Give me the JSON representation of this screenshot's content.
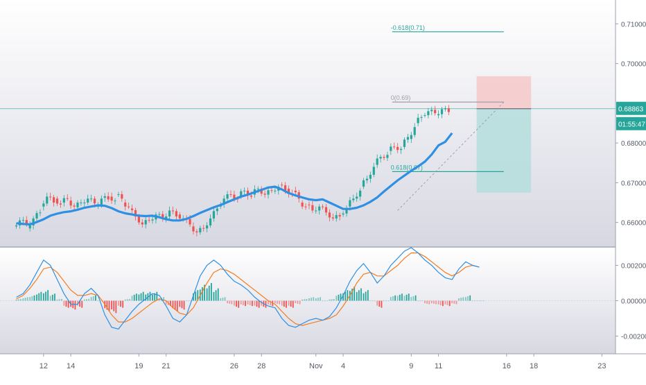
{
  "chart_data": [
    {
      "type": "candlestick",
      "panel": "price",
      "title": "",
      "ylim": [
        0.654,
        0.716
      ],
      "y_ticks": [
        "0.71000",
        "0.70000",
        "0.68000",
        "0.67000",
        "0.66000"
      ],
      "last_price_label": "0.68863",
      "last_price_value": 0.68863,
      "countdown_label": "01:55:47",
      "moving_average": {
        "color": "#2e8fe3",
        "values": [
          0.6598,
          0.6596,
          0.6595,
          0.6601,
          0.6608,
          0.6617,
          0.6622,
          0.6626,
          0.6628,
          0.6632,
          0.6637,
          0.664,
          0.6643,
          0.6642,
          0.6636,
          0.6628,
          0.6623,
          0.662,
          0.6617,
          0.6616,
          0.6617,
          0.6613,
          0.6608,
          0.6605,
          0.6605,
          0.6609,
          0.6616,
          0.6624,
          0.6631,
          0.6638,
          0.6644,
          0.6651,
          0.6658,
          0.6665,
          0.667,
          0.6676,
          0.6682,
          0.6688,
          0.669,
          0.6683,
          0.6674,
          0.6668,
          0.6663,
          0.6658,
          0.6656,
          0.6658,
          0.665,
          0.6642,
          0.6634,
          0.6634,
          0.6637,
          0.6643,
          0.6652,
          0.6663,
          0.6678,
          0.6692,
          0.6706,
          0.6718,
          0.673,
          0.6741,
          0.6753,
          0.6771,
          0.6794,
          0.6803,
          0.6825
        ],
        "x_start": 0,
        "x_step": 0.25
      },
      "candles": [
        [
          0,
          0.659,
          0.6605
        ],
        [
          0.25,
          0.6605,
          0.6595
        ],
        [
          0.5,
          0.6585,
          0.661
        ],
        [
          0.75,
          0.661,
          0.6625
        ],
        [
          1,
          0.664,
          0.6665
        ],
        [
          1.25,
          0.6665,
          0.665
        ],
        [
          1.5,
          0.666,
          0.6645
        ],
        [
          1.75,
          0.665,
          0.666
        ],
        [
          2,
          0.6655,
          0.664
        ],
        [
          2.25,
          0.6638,
          0.665
        ],
        [
          2.5,
          0.665,
          0.666
        ],
        [
          2.75,
          0.666,
          0.6648
        ],
        [
          3,
          0.664,
          0.666
        ],
        [
          3.25,
          0.6662,
          0.6658
        ],
        [
          3.5,
          0.6665,
          0.6655
        ],
        [
          3.75,
          0.667,
          0.666
        ],
        [
          4,
          0.665,
          0.664
        ],
        [
          4.25,
          0.6635,
          0.6615
        ],
        [
          4.5,
          0.6615,
          0.6595
        ],
        [
          4.75,
          0.6595,
          0.6605
        ],
        [
          5,
          0.6605,
          0.662
        ],
        [
          5.25,
          0.662,
          0.661
        ],
        [
          5.5,
          0.661,
          0.663
        ],
        [
          5.75,
          0.663,
          0.6615
        ],
        [
          6,
          0.662,
          0.661
        ],
        [
          6.25,
          0.661,
          0.6595
        ],
        [
          6.5,
          0.659,
          0.6575
        ],
        [
          6.75,
          0.6575,
          0.6585
        ],
        [
          7,
          0.6585,
          0.661
        ],
        [
          7.25,
          0.661,
          0.6635
        ],
        [
          7.5,
          0.664,
          0.666
        ],
        [
          7.75,
          0.666,
          0.667
        ],
        [
          8,
          0.667,
          0.666
        ],
        [
          8.25,
          0.6665,
          0.668
        ],
        [
          8.5,
          0.668,
          0.6665
        ],
        [
          8.75,
          0.667,
          0.6685
        ],
        [
          9,
          0.6685,
          0.667
        ],
        [
          9.25,
          0.667,
          0.668
        ],
        [
          9.5,
          0.668,
          0.669
        ],
        [
          9.75,
          0.6695,
          0.668
        ],
        [
          10,
          0.6685,
          0.667
        ],
        [
          10.25,
          0.668,
          0.666
        ],
        [
          10.5,
          0.665,
          0.664
        ],
        [
          10.75,
          0.6645,
          0.663
        ],
        [
          11,
          0.663,
          0.664
        ],
        [
          11.25,
          0.664,
          0.6625
        ],
        [
          11.5,
          0.6625,
          0.661
        ],
        [
          11.75,
          0.661,
          0.6615
        ],
        [
          12,
          0.662,
          0.6635
        ],
        [
          12.25,
          0.664,
          0.666
        ],
        [
          12.5,
          0.666,
          0.668
        ],
        [
          12.75,
          0.669,
          0.671
        ],
        [
          13,
          0.671,
          0.674
        ],
        [
          13.25,
          0.6745,
          0.6765
        ],
        [
          13.5,
          0.6765,
          0.677
        ],
        [
          13.75,
          0.678,
          0.679
        ],
        [
          14,
          0.679,
          0.6785
        ],
        [
          14.25,
          0.679,
          0.6815
        ],
        [
          14.5,
          0.681,
          0.684
        ],
        [
          14.75,
          0.685,
          0.6865
        ],
        [
          15,
          0.687,
          0.688
        ],
        [
          15.25,
          0.688,
          0.6875
        ],
        [
          15.5,
          0.687,
          0.6885
        ],
        [
          15.75,
          0.6885,
          0.6878
        ]
      ],
      "fib_levels": [
        {
          "label": "-0.618(0.71)",
          "value": 0.708,
          "color": "#26a69a"
        },
        {
          "label": "0(0.69)",
          "value": 0.6903,
          "color": "#9e9ea8"
        },
        {
          "label": "0.618(0.67)",
          "value": 0.6728,
          "color": "#26a69a"
        }
      ],
      "position_tool": {
        "entry": 0.68863,
        "stop": 0.6968,
        "target": 0.6675
      }
    },
    {
      "type": "macd",
      "panel": "oscillator",
      "ylim": [
        -0.003,
        0.003
      ],
      "y_ticks": [
        "0.00200",
        "0.00000",
        "-0.00200"
      ],
      "macd_color": "#2e8fe3",
      "signal_color": "#f57c1f",
      "hist_up_color": "#26a69a",
      "hist_down_color": "#ef5350",
      "x_start": 0,
      "x_step": 0.25,
      "macd": [
        0.0002,
        0.0004,
        0.0009,
        0.0016,
        0.0023,
        0.002,
        0.0012,
        0.0004,
        -0.0002,
        -0.0002,
        0.0004,
        0.0007,
        0.0003,
        -0.0008,
        -0.0015,
        -0.0016,
        -0.0011,
        -0.0006,
        -0.0002,
        0.0001,
        0.0004,
        0.0003,
        -0.0003,
        -0.001,
        -0.0012,
        -0.0008,
        0.0003,
        0.0014,
        0.002,
        0.0023,
        0.002,
        0.0015,
        0.0011,
        0.0009,
        0.0006,
        0.0002,
        -0.0001,
        -0.0003,
        -0.0004,
        -0.001,
        -0.0014,
        -0.0015,
        -0.0013,
        -0.0011,
        -0.001,
        -0.0011,
        -0.0009,
        -0.0004,
        0.0003,
        0.0011,
        0.0017,
        0.0021,
        0.0016,
        0.001,
        0.0014,
        0.002,
        0.0024,
        0.0028,
        0.003,
        0.0027,
        0.0023,
        0.002,
        0.0016,
        0.0013,
        0.0012,
        0.0018,
        0.0022,
        0.002,
        0.0019
      ],
      "signal": [
        0.0001,
        0.0003,
        0.0007,
        0.0012,
        0.0018,
        0.0019,
        0.0016,
        0.0011,
        0.0006,
        0.0003,
        0.0003,
        0.0004,
        0.0003,
        -0.0002,
        -0.0008,
        -0.0012,
        -0.0012,
        -0.001,
        -0.0007,
        -0.0004,
        -0.0001,
        0.0001,
        0.0,
        -0.0004,
        -0.0007,
        -0.0008,
        -0.0004,
        0.0003,
        0.001,
        0.0016,
        0.0018,
        0.0017,
        0.0015,
        0.0012,
        0.0009,
        0.0006,
        0.0003,
        0.0,
        -0.0002,
        -0.0006,
        -0.001,
        -0.0013,
        -0.0014,
        -0.0013,
        -0.0012,
        -0.0011,
        -0.001,
        -0.0008,
        -0.0003,
        0.0003,
        0.001,
        0.0015,
        0.0016,
        0.0014,
        0.0014,
        0.0017,
        0.002,
        0.0024,
        0.0027,
        0.0027,
        0.0025,
        0.0022,
        0.0019,
        0.0016,
        0.0014,
        0.0016,
        0.0019,
        0.002,
        0.0019
      ],
      "histogram": [
        0.0001,
        0.0002,
        0.0003,
        0.0005,
        0.0006,
        0.0004,
        0.0001,
        -0.0004,
        -0.0005,
        -0.0004,
        0.0001,
        0.0003,
        0.0,
        -0.0006,
        -0.0007,
        -0.0004,
        0.0001,
        0.0004,
        0.0005,
        0.0005,
        0.0005,
        0.0002,
        -0.0003,
        -0.0006,
        -0.0005,
        0.0,
        0.0006,
        0.0009,
        0.001,
        0.0007,
        0.0002,
        -0.0002,
        -0.0004,
        -0.0003,
        -0.0003,
        -0.0004,
        -0.0004,
        -0.0003,
        -0.0002,
        -0.0004,
        -0.0004,
        -0.0002,
        0.0001,
        0.0002,
        0.0002,
        0.0,
        0.0001,
        0.0004,
        0.0006,
        0.0008,
        0.0007,
        0.0006,
        0.0,
        -0.0004,
        0.0,
        0.0003,
        0.0004,
        0.0004,
        0.0003,
        0.0,
        -0.0002,
        -0.0002,
        -0.0003,
        -0.0003,
        -0.0002,
        0.0002,
        0.0003,
        0.0,
        0.0
      ]
    }
  ],
  "x_axis": {
    "labels": [
      "12",
      "14",
      "19",
      "21",
      "26",
      "28",
      "Nov",
      "4",
      "9",
      "11",
      "16",
      "18",
      "23"
    ],
    "positions": [
      1,
      2,
      4.5,
      5.5,
      8,
      9,
      11,
      12,
      14.5,
      15.5,
      18,
      19,
      21.5
    ],
    "range": [
      -0.6,
      22
    ]
  }
}
